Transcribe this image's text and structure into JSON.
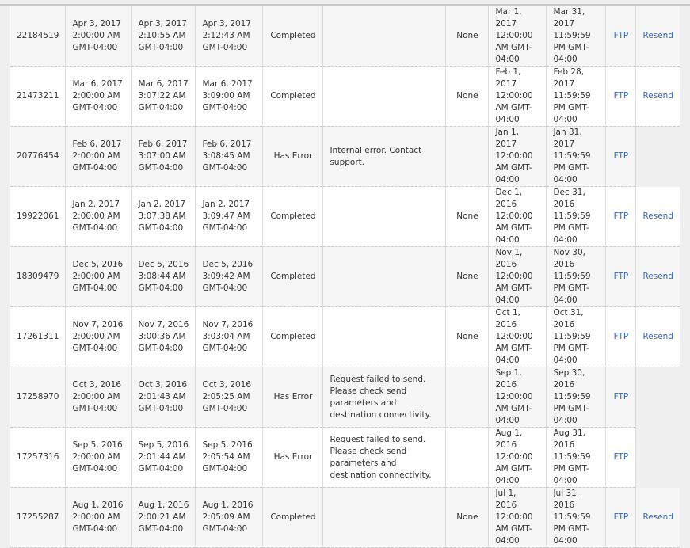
{
  "rows": [
    {
      "id": "22184519",
      "scheduled": [
        "Apr 3, 2017",
        "2:00:00 AM",
        "GMT-04:00"
      ],
      "started": [
        "Apr 3, 2017",
        "2:10:55 AM",
        "GMT-04:00"
      ],
      "completed": [
        "Apr 3, 2017",
        "2:12:43 AM",
        "GMT-04:00"
      ],
      "status": "Completed",
      "message": "",
      "other": "None",
      "range_start": "Mar 1, 2017 12:00:00 AM GMT-04:00",
      "range_end": "Mar 31, 2017 11:59:59 PM GMT-04:00",
      "delivery": "FTP",
      "action": "Resend"
    },
    {
      "id": "21473211",
      "scheduled": [
        "Mar 6, 2017",
        "2:00:00 AM",
        "GMT-04:00"
      ],
      "started": [
        "Mar 6, 2017",
        "3:07:22 AM",
        "GMT-04:00"
      ],
      "completed": [
        "Mar 6, 2017",
        "3:09:00 AM",
        "GMT-04:00"
      ],
      "status": "Completed",
      "message": "",
      "other": "None",
      "range_start": "Feb 1, 2017 12:00:00 AM GMT-04:00",
      "range_end": "Feb 28, 2017 11:59:59 PM GMT-04:00",
      "delivery": "FTP",
      "action": "Resend"
    },
    {
      "id": "20776454",
      "scheduled": [
        "Feb 6, 2017",
        "2:00:00 AM",
        "GMT-04:00"
      ],
      "started": [
        "Feb 6, 2017",
        "3:07:00 AM",
        "GMT-04:00"
      ],
      "completed": [
        "Feb 6, 2017",
        "3:08:45 AM",
        "GMT-04:00"
      ],
      "status": "Has Error",
      "message": "Internal error. Contact support.",
      "other": "",
      "range_start": "Jan 1, 2017 12:00:00 AM GMT-04:00",
      "range_end": "Jan 31, 2017 11:59:59 PM GMT-04:00",
      "delivery": "FTP",
      "action": ""
    },
    {
      "id": "19922061",
      "scheduled": [
        "Jan 2, 2017",
        "2:00:00 AM",
        "GMT-04:00"
      ],
      "started": [
        "Jan 2, 2017",
        "3:07:38 AM",
        "GMT-04:00"
      ],
      "completed": [
        "Jan 2, 2017",
        "3:09:47 AM",
        "GMT-04:00"
      ],
      "status": "Completed",
      "message": "",
      "other": "None",
      "range_start": "Dec 1, 2016 12:00:00 AM GMT-04:00",
      "range_end": "Dec 31, 2016 11:59:59 PM GMT-04:00",
      "delivery": "FTP",
      "action": "Resend"
    },
    {
      "id": "18309479",
      "scheduled": [
        "Dec 5, 2016",
        "2:00:00 AM",
        "GMT-04:00"
      ],
      "started": [
        "Dec 5, 2016",
        "3:08:44 AM",
        "GMT-04:00"
      ],
      "completed": [
        "Dec 5, 2016",
        "3:09:42 AM",
        "GMT-04:00"
      ],
      "status": "Completed",
      "message": "",
      "other": "None",
      "range_start": "Nov 1, 2016 12:00:00 AM GMT-04:00",
      "range_end": "Nov 30, 2016 11:59:59 PM GMT-04:00",
      "delivery": "FTP",
      "action": "Resend"
    },
    {
      "id": "17261311",
      "scheduled": [
        "Nov 7, 2016",
        "2:00:00 AM",
        "GMT-04:00"
      ],
      "started": [
        "Nov 7, 2016",
        "3:00:36 AM",
        "GMT-04:00"
      ],
      "completed": [
        "Nov 7, 2016",
        "3:03:04 AM",
        "GMT-04:00"
      ],
      "status": "Completed",
      "message": "",
      "other": "None",
      "range_start": "Oct 1, 2016 12:00:00 AM GMT-04:00",
      "range_end": "Oct 31, 2016 11:59:59 PM GMT-04:00",
      "delivery": "FTP",
      "action": "Resend"
    },
    {
      "id": "17258970",
      "scheduled": [
        "Oct 3, 2016",
        "2:00:00 AM",
        "GMT-04:00"
      ],
      "started": [
        "Oct 3, 2016",
        "2:01:43 AM",
        "GMT-04:00"
      ],
      "completed": [
        "Oct 3, 2016",
        "2:05:25 AM",
        "GMT-04:00"
      ],
      "status": "Has Error",
      "message": "Request failed to send. Please check send parameters and destination connectivity.",
      "other": "",
      "range_start": "Sep 1, 2016 12:00:00 AM GMT-04:00",
      "range_end": "Sep 30, 2016 11:59:59 PM GMT-04:00",
      "delivery": "FTP",
      "action": ""
    },
    {
      "id": "17257316",
      "scheduled": [
        "Sep 5, 2016",
        "2:00:00 AM",
        "GMT-04:00"
      ],
      "started": [
        "Sep 5, 2016",
        "2:01:44 AM",
        "GMT-04:00"
      ],
      "completed": [
        "Sep 5, 2016",
        "2:05:54 AM",
        "GMT-04:00"
      ],
      "status": "Has Error",
      "message": "Request failed to send. Please check send parameters and destination connectivity.",
      "other": "",
      "range_start": "Aug 1, 2016 12:00:00 AM GMT-04:00",
      "range_end": "Aug 31, 2016 11:59:59 PM GMT-04:00",
      "delivery": "FTP",
      "action": ""
    },
    {
      "id": "17255287",
      "scheduled": [
        "Aug 1, 2016",
        "2:00:00 AM",
        "GMT-04:00"
      ],
      "started": [
        "Aug 1, 2016",
        "2:00:21 AM",
        "GMT-04:00"
      ],
      "completed": [
        "Aug 1, 2016",
        "2:05:09 AM",
        "GMT-04:00"
      ],
      "status": "Completed",
      "message": "",
      "other": "None",
      "range_start": "Jul 1, 2016 12:00:00 AM GMT-04:00",
      "range_end": "Jul 31, 2016 11:59:59 PM GMT-04:00",
      "delivery": "FTP",
      "action": "Resend"
    }
  ]
}
